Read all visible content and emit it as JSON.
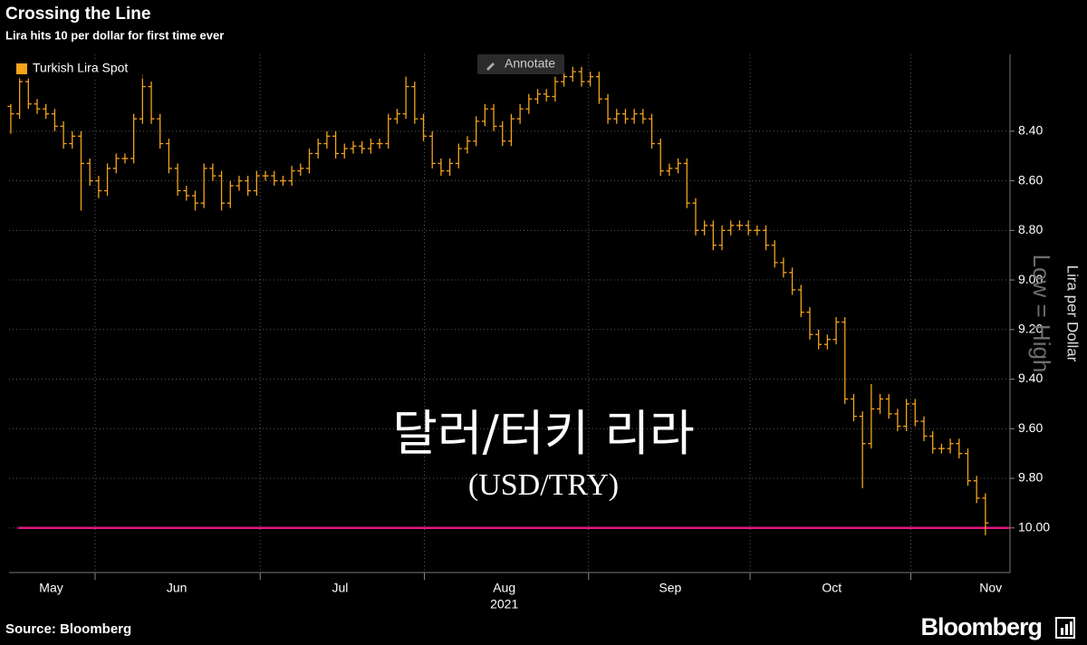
{
  "title": "Crossing the Line",
  "subtitle": "Lira hits 10 per dollar for first time ever",
  "source": "Source: Bloomberg",
  "logo": "Bloomberg",
  "annotate_button": "Annotate",
  "overlay": {
    "title": "달러/터키 리라",
    "subtitle": "(USD/TRY)"
  },
  "chart_data": {
    "type": "ohlc",
    "legend": "upper left",
    "grid": true,
    "y_label": "Lira per Dollar",
    "watermark": "Low = High",
    "y_inverted": true,
    "ylim": [
      8.09,
      10.18
    ],
    "yticks": [
      {
        "value": 8.4,
        "label": "8.40"
      },
      {
        "value": 8.6,
        "label": "8.60"
      },
      {
        "value": 8.8,
        "label": "8.80"
      },
      {
        "value": 9.0,
        "label": "9.00"
      },
      {
        "value": 9.2,
        "label": "9.20"
      },
      {
        "value": 9.4,
        "label": "9.40"
      },
      {
        "value": 9.6,
        "label": "9.60"
      },
      {
        "value": 9.8,
        "label": "9.80"
      },
      {
        "value": 10.0,
        "label": "10.00"
      }
    ],
    "xlim": [
      -0.2,
      113.8
    ],
    "xticks": [
      {
        "value": 4.6,
        "label": "May"
      },
      {
        "value": 18.9,
        "label": "Jun"
      },
      {
        "value": 37.5,
        "label": "Jul"
      },
      {
        "value": 56.2,
        "label": "Aug"
      },
      {
        "value": 75.1,
        "label": "Sep"
      },
      {
        "value": 93.5,
        "label": "Oct"
      },
      {
        "value": 111.6,
        "label": "Nov"
      }
    ],
    "x_year": {
      "value": 56.2,
      "label": "2021"
    },
    "xgrid": [
      9.6,
      28.4,
      47.1,
      65.8,
      84.2,
      102.5
    ],
    "threshold": {
      "value": 10,
      "color": "#e0177f"
    },
    "series": [
      {
        "name": "Turkish Lira Spot",
        "color": "#f3a31d",
        "open": [
          8.3,
          8.33,
          8.2,
          8.29,
          8.31,
          8.33,
          8.38,
          8.45,
          8.42,
          8.53,
          8.6,
          8.64,
          8.55,
          8.51,
          8.51,
          8.35,
          8.22,
          8.35,
          8.45,
          8.55,
          8.64,
          8.66,
          8.69,
          8.55,
          8.58,
          8.69,
          8.62,
          8.6,
          8.64,
          8.58,
          8.58,
          8.6,
          8.6,
          8.56,
          8.55,
          8.49,
          8.45,
          8.42,
          8.49,
          8.47,
          8.46,
          8.47,
          8.45,
          8.45,
          8.35,
          8.33,
          8.22,
          8.35,
          8.42,
          8.53,
          8.56,
          8.53,
          8.47,
          8.44,
          8.36,
          8.31,
          8.38,
          8.44,
          8.35,
          8.31,
          8.27,
          8.25,
          8.26,
          8.2,
          8.18,
          8.16,
          8.2,
          8.18,
          8.27,
          8.35,
          8.33,
          8.35,
          8.33,
          8.35,
          8.45,
          8.56,
          8.55,
          8.53,
          8.69,
          8.8,
          8.78,
          8.86,
          8.8,
          8.78,
          8.78,
          8.8,
          8.8,
          8.86,
          8.93,
          8.97,
          9.04,
          9.13,
          9.22,
          9.26,
          9.24,
          9.17,
          9.48,
          9.55,
          9.66,
          9.52,
          9.48,
          9.54,
          9.59,
          9.5,
          9.57,
          9.63,
          9.68,
          9.68,
          9.66,
          9.7,
          9.81,
          9.88
        ],
        "high": [
          8.41,
          8.35,
          8.31,
          8.33,
          8.35,
          8.4,
          8.47,
          8.47,
          8.72,
          8.62,
          8.67,
          8.66,
          8.57,
          8.53,
          8.53,
          8.37,
          8.37,
          8.47,
          8.57,
          8.66,
          8.68,
          8.72,
          8.71,
          8.6,
          8.72,
          8.71,
          8.64,
          8.66,
          8.66,
          8.6,
          8.62,
          8.62,
          8.62,
          8.58,
          8.57,
          8.51,
          8.47,
          8.51,
          8.51,
          8.49,
          8.49,
          8.49,
          8.47,
          8.47,
          8.37,
          8.35,
          8.37,
          8.44,
          8.55,
          8.58,
          8.58,
          8.55,
          8.49,
          8.46,
          8.38,
          8.4,
          8.46,
          8.46,
          8.37,
          8.33,
          8.29,
          8.28,
          8.28,
          8.22,
          8.2,
          8.22,
          8.22,
          8.29,
          8.37,
          8.37,
          8.37,
          8.37,
          8.37,
          8.47,
          8.58,
          8.58,
          8.57,
          8.71,
          8.82,
          8.82,
          8.88,
          8.88,
          8.82,
          8.8,
          8.82,
          8.82,
          8.88,
          8.95,
          8.99,
          9.06,
          9.15,
          9.24,
          9.28,
          9.28,
          9.26,
          9.5,
          9.57,
          9.84,
          9.68,
          9.54,
          9.56,
          9.61,
          9.61,
          9.59,
          9.65,
          9.7,
          9.7,
          9.7,
          9.72,
          9.83,
          9.9,
          10.03
        ],
        "low": [
          8.29,
          8.18,
          8.18,
          8.27,
          8.29,
          8.31,
          8.36,
          8.4,
          8.4,
          8.51,
          8.58,
          8.53,
          8.49,
          8.49,
          8.33,
          8.17,
          8.2,
          8.33,
          8.43,
          8.53,
          8.62,
          8.64,
          8.53,
          8.53,
          8.56,
          8.6,
          8.58,
          8.58,
          8.56,
          8.56,
          8.56,
          8.58,
          8.54,
          8.53,
          8.47,
          8.43,
          8.4,
          8.4,
          8.45,
          8.44,
          8.44,
          8.43,
          8.43,
          8.33,
          8.31,
          8.18,
          8.2,
          8.33,
          8.4,
          8.51,
          8.51,
          8.45,
          8.42,
          8.34,
          8.29,
          8.29,
          8.36,
          8.33,
          8.29,
          8.25,
          8.23,
          8.23,
          8.18,
          8.16,
          8.14,
          8.14,
          8.16,
          8.16,
          8.25,
          8.31,
          8.31,
          8.31,
          8.31,
          8.33,
          8.43,
          8.53,
          8.51,
          8.51,
          8.67,
          8.76,
          8.76,
          8.78,
          8.76,
          8.76,
          8.76,
          8.78,
          8.78,
          8.84,
          8.91,
          8.95,
          9.02,
          9.11,
          9.2,
          9.22,
          9.15,
          9.15,
          9.46,
          9.53,
          9.42,
          9.46,
          9.46,
          9.52,
          9.48,
          9.48,
          9.55,
          9.61,
          9.66,
          9.64,
          9.64,
          9.68,
          9.79,
          9.86
        ],
        "close": [
          8.33,
          8.2,
          8.29,
          8.31,
          8.33,
          8.38,
          8.45,
          8.42,
          8.53,
          8.6,
          8.64,
          8.55,
          8.51,
          8.51,
          8.35,
          8.22,
          8.35,
          8.45,
          8.55,
          8.64,
          8.66,
          8.69,
          8.55,
          8.58,
          8.69,
          8.62,
          8.6,
          8.64,
          8.58,
          8.58,
          8.6,
          8.6,
          8.56,
          8.55,
          8.49,
          8.45,
          8.42,
          8.49,
          8.47,
          8.46,
          8.47,
          8.45,
          8.45,
          8.35,
          8.33,
          8.22,
          8.35,
          8.42,
          8.53,
          8.56,
          8.53,
          8.47,
          8.44,
          8.36,
          8.31,
          8.38,
          8.44,
          8.35,
          8.31,
          8.27,
          8.25,
          8.26,
          8.2,
          8.18,
          8.16,
          8.2,
          8.18,
          8.27,
          8.35,
          8.33,
          8.35,
          8.33,
          8.35,
          8.45,
          8.56,
          8.55,
          8.53,
          8.69,
          8.8,
          8.78,
          8.86,
          8.8,
          8.78,
          8.78,
          8.8,
          8.8,
          8.86,
          8.93,
          8.97,
          9.04,
          9.13,
          9.22,
          9.26,
          9.24,
          9.17,
          9.48,
          9.55,
          9.66,
          9.52,
          9.48,
          9.54,
          9.59,
          9.5,
          9.57,
          9.63,
          9.68,
          9.68,
          9.66,
          9.7,
          9.81,
          9.88,
          9.98
        ]
      }
    ]
  }
}
